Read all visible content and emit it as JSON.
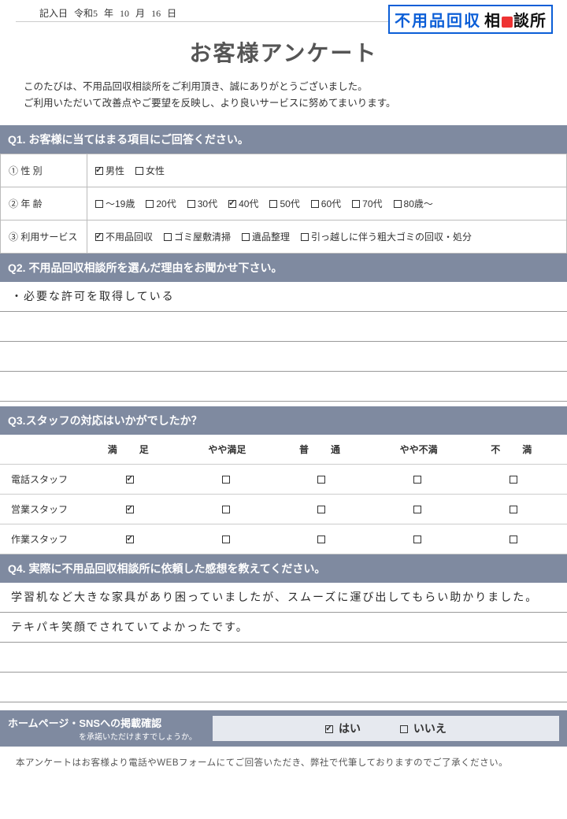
{
  "colors": {
    "header_bg": "#7f8aa0",
    "logo_blue": "#0b5ed7",
    "logo_red": "#e33333",
    "border": "#bbbbbb"
  },
  "date": {
    "label": "記入日",
    "era": "令和5",
    "year_sfx": "年",
    "month": "10",
    "month_sfx": "月",
    "day": "16",
    "day_sfx": "日"
  },
  "logo": {
    "blue": "不用品回収",
    "black_before": "相",
    "black_after": "談所"
  },
  "title": "お客様アンケート",
  "intro_l1": "このたびは、不用品回収相談所をご利用頂き、誠にありがとうございました。",
  "intro_l2": "ご利用いただいて改善点やご要望を反映し、より良いサービスに努めてまいります。",
  "q1": {
    "head": "Q1. お客様に当てはまる項目にご回答ください。",
    "r1_label": "① 性 別",
    "r1_opts": [
      {
        "t": "男性",
        "c": true
      },
      {
        "t": "女性",
        "c": false
      }
    ],
    "r2_label": "② 年 齢",
    "r2_opts": [
      {
        "t": "～19歳",
        "c": false
      },
      {
        "t": "20代",
        "c": false
      },
      {
        "t": "30代",
        "c": false
      },
      {
        "t": "40代",
        "c": true
      },
      {
        "t": "50代",
        "c": false
      },
      {
        "t": "60代",
        "c": false
      },
      {
        "t": "70代",
        "c": false
      },
      {
        "t": "80歳～",
        "c": false
      }
    ],
    "r3_label": "③ 利用サービス",
    "r3_opts": [
      {
        "t": "不用品回収",
        "c": true
      },
      {
        "t": "ゴミ屋敷清掃",
        "c": false
      },
      {
        "t": "遺品整理",
        "c": false
      },
      {
        "t": "引っ越しに伴う粗大ゴミの回収・処分",
        "c": false
      }
    ]
  },
  "q2": {
    "head": "Q2. 不用品回収相談所を選んだ理由をお聞かせ下さい。",
    "lines": [
      "・必要な許可を取得している",
      "",
      "",
      ""
    ]
  },
  "q3": {
    "head": "Q3.スタッフの対応はいかがでしたか？",
    "cols": [
      "満足",
      "やや満足",
      "普通",
      "やや不満",
      "不満"
    ],
    "cols_disp": [
      "満　足",
      "やや満足",
      "普　通",
      "やや不満",
      "不　満"
    ],
    "rows": [
      {
        "label": "電話スタッフ",
        "checks": [
          true,
          false,
          false,
          false,
          false
        ]
      },
      {
        "label": "営業スタッフ",
        "checks": [
          true,
          false,
          false,
          false,
          false
        ]
      },
      {
        "label": "作業スタッフ",
        "checks": [
          true,
          false,
          false,
          false,
          false
        ]
      }
    ]
  },
  "q4": {
    "head": "Q4. 実際に不用品回収相談所に依頼した感想を教えてください。",
    "lines": [
      "学習机など大きな家具があり困っていましたが、スムーズに運び出してもらい助かりました。",
      "テキパキ笑顔でされていてよかったです。",
      "",
      ""
    ]
  },
  "confirm": {
    "title": "ホームページ・SNSへの掲載確認",
    "sub": "を承諾いただけますでしょうか。",
    "yes": "はい",
    "yes_c": true,
    "no": "いいえ",
    "no_c": false
  },
  "footnote": "本アンケートはお客様より電話やWEBフォームにてご回答いただき、弊社で代筆しておりますのでご了承ください。"
}
